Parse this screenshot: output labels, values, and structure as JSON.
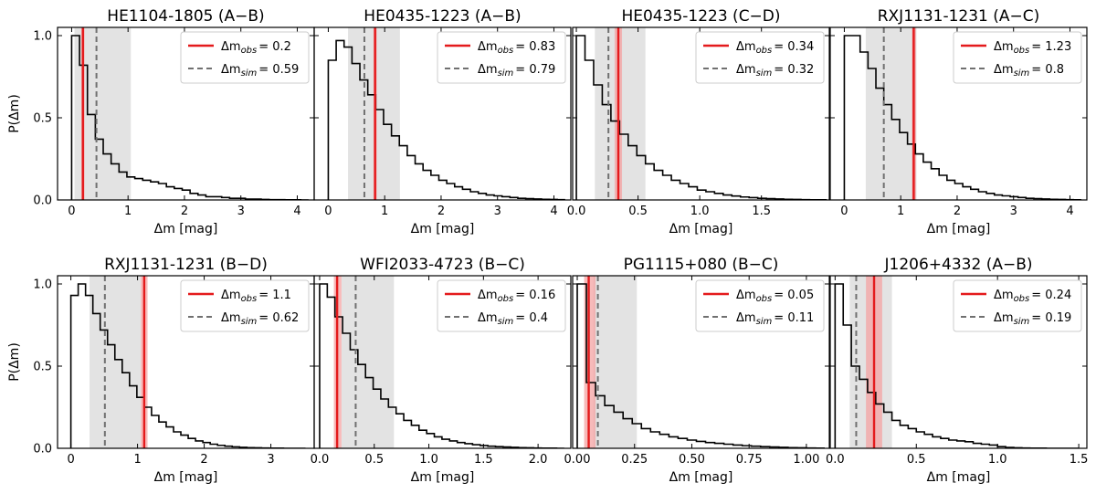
{
  "chart_data": [
    {
      "type": "step-histogram",
      "title": "HE1104-1805 (A−B)",
      "xlabel": "Δm [mag]",
      "ylabel": "P(Δm)",
      "xlim": [
        -0.25,
        4.3
      ],
      "ylim": [
        0,
        1.05
      ],
      "xticks": [
        "0",
        "1",
        "2",
        "3",
        "4"
      ],
      "xtick_values": [
        0,
        1,
        2,
        3,
        4
      ],
      "yticks": [
        "0.0",
        "0.5",
        "1.0"
      ],
      "ytick_values": [
        0,
        0.5,
        1.0
      ],
      "hist_x": [
        0,
        0.14,
        0.28,
        0.42,
        0.56,
        0.7,
        0.84,
        0.98,
        1.12,
        1.26,
        1.4,
        1.54,
        1.68,
        1.82,
        1.96,
        2.1,
        2.24,
        2.38,
        2.52,
        2.66,
        2.8,
        2.94,
        3.08,
        3.22,
        3.36,
        3.5,
        3.64,
        3.78,
        3.92,
        4.06,
        4.2
      ],
      "hist_y": [
        1.0,
        0.82,
        0.52,
        0.37,
        0.28,
        0.22,
        0.17,
        0.14,
        0.13,
        0.12,
        0.11,
        0.1,
        0.08,
        0.07,
        0.06,
        0.04,
        0.03,
        0.02,
        0.02,
        0.015,
        0.01,
        0.01,
        0.005,
        0.005,
        0.003,
        0.002,
        0.002,
        0.001,
        0.001,
        0
      ],
      "obs": {
        "value": 0.2,
        "low": 0.17,
        "high": 0.23,
        "label": "= 0.2"
      },
      "sim": {
        "value": 0.44,
        "low": 0.05,
        "high": 1.05,
        "label": "= 0.59"
      }
    },
    {
      "type": "step-histogram",
      "title": "HE0435-1223 (A−B)",
      "xlabel": "Δm [mag]",
      "xlim": [
        -0.25,
        4.3
      ],
      "ylim": [
        0,
        1.05
      ],
      "xticks": [
        "0",
        "1",
        "2",
        "3",
        "4"
      ],
      "xtick_values": [
        0,
        1,
        2,
        3,
        4
      ],
      "hist_x": [
        0,
        0.14,
        0.28,
        0.42,
        0.56,
        0.7,
        0.84,
        0.98,
        1.12,
        1.26,
        1.4,
        1.54,
        1.68,
        1.82,
        1.96,
        2.1,
        2.24,
        2.38,
        2.52,
        2.66,
        2.8,
        2.94,
        3.08,
        3.22,
        3.36,
        3.5,
        3.64,
        3.78,
        3.92,
        4.06,
        4.2
      ],
      "hist_y": [
        0.85,
        0.97,
        0.93,
        0.83,
        0.73,
        0.64,
        0.55,
        0.46,
        0.39,
        0.33,
        0.27,
        0.22,
        0.18,
        0.15,
        0.12,
        0.1,
        0.08,
        0.065,
        0.05,
        0.04,
        0.03,
        0.025,
        0.02,
        0.015,
        0.01,
        0.008,
        0.006,
        0.004,
        0.003,
        0.002
      ],
      "obs": {
        "value": 0.83,
        "low": 0.8,
        "high": 0.86,
        "label": "= 0.83"
      },
      "sim": {
        "value": 0.64,
        "low": 0.35,
        "high": 1.27,
        "label": "= 0.79"
      }
    },
    {
      "type": "step-histogram",
      "title": "HE0435-1223 (C−D)",
      "xlabel": "Δm [mag]",
      "xlim": [
        -0.03,
        2.05
      ],
      "ylim": [
        0,
        1.05
      ],
      "xticks": [
        "0.0",
        "0.5",
        "1.0",
        "1.5"
      ],
      "xtick_values": [
        0,
        0.5,
        1.0,
        1.5
      ],
      "hist_x": [
        0,
        0.07,
        0.14,
        0.21,
        0.28,
        0.35,
        0.42,
        0.49,
        0.56,
        0.63,
        0.7,
        0.77,
        0.84,
        0.91,
        0.98,
        1.05,
        1.12,
        1.19,
        1.26,
        1.33,
        1.4,
        1.47,
        1.54,
        1.61,
        1.68,
        1.75,
        1.82,
        1.89,
        1.96,
        2.03
      ],
      "hist_y": [
        1.0,
        0.85,
        0.7,
        0.58,
        0.48,
        0.4,
        0.33,
        0.27,
        0.22,
        0.18,
        0.15,
        0.12,
        0.1,
        0.08,
        0.06,
        0.05,
        0.04,
        0.03,
        0.024,
        0.018,
        0.014,
        0.01,
        0.008,
        0.006,
        0.004,
        0.003,
        0.002,
        0.001,
        0.001
      ],
      "obs": {
        "value": 0.34,
        "low": 0.31,
        "high": 0.37,
        "label": "= 0.34"
      },
      "sim": {
        "value": 0.26,
        "low": 0.15,
        "high": 0.56,
        "label": "= 0.32"
      }
    },
    {
      "type": "step-histogram",
      "title": "RXJ1131-1231 (A−C)",
      "xlabel": "Δm [mag]",
      "xlim": [
        -0.25,
        4.3
      ],
      "ylim": [
        0,
        1.05
      ],
      "xticks": [
        "0",
        "1",
        "2",
        "3",
        "4"
      ],
      "xtick_values": [
        0,
        1,
        2,
        3,
        4
      ],
      "hist_x": [
        0,
        0.14,
        0.28,
        0.42,
        0.56,
        0.7,
        0.84,
        0.98,
        1.12,
        1.26,
        1.4,
        1.54,
        1.68,
        1.82,
        1.96,
        2.1,
        2.24,
        2.38,
        2.52,
        2.66,
        2.8,
        2.94,
        3.08,
        3.22,
        3.36,
        3.5,
        3.64,
        3.78,
        3.92,
        4.06,
        4.2
      ],
      "hist_y": [
        1.0,
        1.0,
        0.9,
        0.8,
        0.68,
        0.58,
        0.49,
        0.41,
        0.34,
        0.28,
        0.23,
        0.19,
        0.15,
        0.12,
        0.1,
        0.08,
        0.065,
        0.05,
        0.04,
        0.03,
        0.025,
        0.02,
        0.015,
        0.01,
        0.008,
        0.006,
        0.004,
        0.003,
        0.002,
        0.001
      ],
      "obs": {
        "value": 1.23,
        "low": 1.2,
        "high": 1.27,
        "label": "= 1.23"
      },
      "sim": {
        "value": 0.7,
        "low": 0.38,
        "high": 1.28,
        "label": "= 0.8"
      }
    },
    {
      "type": "step-histogram",
      "title": "RXJ1131-1231 (B−D)",
      "xlabel": "Δm [mag]",
      "ylabel": "P(Δm)",
      "xlim": [
        -0.2,
        3.65
      ],
      "ylim": [
        0,
        1.05
      ],
      "xticks": [
        "0",
        "1",
        "2",
        "3"
      ],
      "xtick_values": [
        0,
        1,
        2,
        3
      ],
      "yticks": [
        "0.0",
        "0.5",
        "1.0"
      ],
      "ytick_values": [
        0,
        0.5,
        1.0
      ],
      "hist_x": [
        0,
        0.11,
        0.22,
        0.33,
        0.44,
        0.55,
        0.66,
        0.77,
        0.88,
        0.99,
        1.1,
        1.21,
        1.32,
        1.43,
        1.54,
        1.65,
        1.76,
        1.87,
        1.98,
        2.09,
        2.2,
        2.31,
        2.42,
        2.53,
        2.64,
        2.75,
        2.86,
        2.97,
        3.08,
        3.19,
        3.3,
        3.41,
        3.52
      ],
      "hist_y": [
        0.93,
        1.0,
        0.93,
        0.82,
        0.72,
        0.63,
        0.54,
        0.46,
        0.38,
        0.31,
        0.25,
        0.2,
        0.16,
        0.13,
        0.1,
        0.08,
        0.06,
        0.045,
        0.035,
        0.025,
        0.018,
        0.013,
        0.009,
        0.006,
        0.004,
        0.003,
        0.002,
        0.001,
        0.001,
        0,
        0,
        0
      ],
      "obs": {
        "value": 1.1,
        "low": 1.05,
        "high": 1.15,
        "label": "= 1.1"
      },
      "sim": {
        "value": 0.51,
        "low": 0.28,
        "high": 1.05,
        "label": "= 0.62"
      }
    },
    {
      "type": "step-histogram",
      "title": "WFI2033-4723 (B−C)",
      "xlabel": "Δm [mag]",
      "xlim": [
        -0.05,
        2.3
      ],
      "ylim": [
        0,
        1.05
      ],
      "xticks": [
        "0.0",
        "0.5",
        "1.0",
        "1.5",
        "2.0"
      ],
      "xtick_values": [
        0,
        0.5,
        1.0,
        1.5,
        2.0
      ],
      "hist_x": [
        0,
        0.07,
        0.14,
        0.21,
        0.28,
        0.35,
        0.42,
        0.49,
        0.56,
        0.63,
        0.7,
        0.77,
        0.84,
        0.91,
        0.98,
        1.05,
        1.12,
        1.19,
        1.26,
        1.33,
        1.4,
        1.47,
        1.54,
        1.61,
        1.68,
        1.75,
        1.82,
        1.89,
        1.96,
        2.03,
        2.1,
        2.17,
        2.24
      ],
      "hist_y": [
        1.0,
        0.92,
        0.8,
        0.7,
        0.6,
        0.51,
        0.43,
        0.36,
        0.3,
        0.25,
        0.21,
        0.17,
        0.14,
        0.11,
        0.09,
        0.07,
        0.055,
        0.045,
        0.035,
        0.028,
        0.022,
        0.017,
        0.013,
        0.01,
        0.008,
        0.006,
        0.004,
        0.003,
        0.002,
        0.001,
        0.001,
        0
      ],
      "obs": {
        "value": 0.16,
        "low": 0.13,
        "high": 0.2,
        "label": "= 0.16"
      },
      "sim": {
        "value": 0.33,
        "low": 0.2,
        "high": 0.68,
        "label": "= 0.4"
      }
    },
    {
      "type": "step-histogram",
      "title": "PG1115+080 (B−C)",
      "xlabel": "Δm [mag]",
      "xlim": [
        -0.02,
        1.1
      ],
      "ylim": [
        0,
        1.05
      ],
      "xticks": [
        "0.00",
        "0.25",
        "0.50",
        "0.75",
        "1.00"
      ],
      "xtick_values": [
        0,
        0.25,
        0.5,
        0.75,
        1.0
      ],
      "hist_x": [
        0,
        0.04,
        0.08,
        0.12,
        0.16,
        0.2,
        0.24,
        0.28,
        0.32,
        0.36,
        0.4,
        0.44,
        0.48,
        0.52,
        0.56,
        0.6,
        0.64,
        0.68,
        0.72,
        0.76,
        0.8,
        0.84,
        0.88,
        0.92,
        0.96,
        1.0,
        1.04,
        1.08
      ],
      "hist_y": [
        1.0,
        0.4,
        0.32,
        0.26,
        0.22,
        0.18,
        0.15,
        0.12,
        0.1,
        0.085,
        0.07,
        0.06,
        0.05,
        0.042,
        0.035,
        0.03,
        0.025,
        0.02,
        0.016,
        0.013,
        0.01,
        0.008,
        0.006,
        0.004,
        0.003,
        0.002,
        0.001
      ],
      "obs": {
        "value": 0.05,
        "low": 0.03,
        "high": 0.08,
        "label": "= 0.05"
      },
      "sim": {
        "value": 0.09,
        "low": 0.07,
        "high": 0.26,
        "label": "= 0.11"
      }
    },
    {
      "type": "step-histogram",
      "title": "J1206+4332 (A−B)",
      "xlabel": "Δm [mag]",
      "xlim": [
        -0.03,
        1.55
      ],
      "ylim": [
        0,
        1.05
      ],
      "xticks": [
        "0.0",
        "0.5",
        "1.0",
        "1.5"
      ],
      "xtick_values": [
        0,
        0.5,
        1.0,
        1.5
      ],
      "hist_x": [
        0,
        0.05,
        0.1,
        0.15,
        0.2,
        0.25,
        0.3,
        0.35,
        0.4,
        0.45,
        0.5,
        0.55,
        0.6,
        0.65,
        0.7,
        0.75,
        0.8,
        0.85,
        0.9,
        0.95,
        1.0,
        1.05,
        1.1,
        1.15,
        1.2,
        1.25,
        1.3,
        1.35,
        1.4,
        1.45,
        1.5
      ],
      "hist_y": [
        1.0,
        0.75,
        0.5,
        0.42,
        0.34,
        0.27,
        0.22,
        0.17,
        0.14,
        0.12,
        0.1,
        0.085,
        0.07,
        0.06,
        0.05,
        0.045,
        0.04,
        0.03,
        0.025,
        0.02,
        0.01,
        0.005,
        0.003,
        0.002,
        0.001,
        0.001,
        0,
        0,
        0,
        0
      ],
      "obs": {
        "value": 0.24,
        "low": 0.19,
        "high": 0.29,
        "label": "= 0.24"
      },
      "sim": {
        "value": 0.13,
        "low": 0.09,
        "high": 0.35,
        "label": "= 0.19"
      }
    }
  ],
  "legend": {
    "obs_symbol": "Δm",
    "obs_sub": "obs",
    "sim_symbol": "Δm",
    "sim_sub": "sim"
  },
  "colors": {
    "hist": "#000000",
    "obs_line": "#e41a1c",
    "obs_band": "#f4a3a3",
    "sim_line": "#707070",
    "sim_band": "#d9d9d9",
    "legend_border": "#cccccc"
  }
}
